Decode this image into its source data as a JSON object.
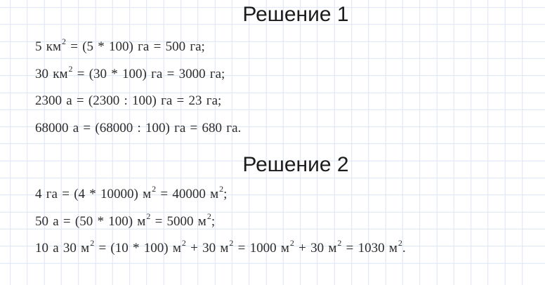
{
  "page": {
    "background_style": "grid-paper",
    "grid_color": "#dce5f3",
    "text_color": "#2c2c2c",
    "heading_color": "#1c1c1c"
  },
  "sections": [
    {
      "title": "Решение 1",
      "lines": [
        {
          "segments": [
            {
              "text": "5 км"
            },
            {
              "text": "2",
              "sup": true
            },
            {
              "text": " = (5 * 100) га = 500 га;"
            }
          ]
        },
        {
          "segments": [
            {
              "text": "30 км"
            },
            {
              "text": "2",
              "sup": true
            },
            {
              "text": " = (30 * 100) га = 3000 га;"
            }
          ]
        },
        {
          "segments": [
            {
              "text": "2300 а = (2300 : 100) га = 23 га;"
            }
          ]
        },
        {
          "segments": [
            {
              "text": "68000 а = (68000 : 100) га = 680 га."
            }
          ]
        }
      ]
    },
    {
      "title": "Решение 2",
      "lines": [
        {
          "segments": [
            {
              "text": "4 га = (4 * 10000) м"
            },
            {
              "text": "2",
              "sup": true
            },
            {
              "text": " = 40000 м"
            },
            {
              "text": "2",
              "sup": true
            },
            {
              "text": ";"
            }
          ]
        },
        {
          "segments": [
            {
              "text": "50 а = (50 * 100) м"
            },
            {
              "text": "2",
              "sup": true
            },
            {
              "text": " = 5000 м"
            },
            {
              "text": "2",
              "sup": true
            },
            {
              "text": ";"
            }
          ]
        },
        {
          "segments": [
            {
              "text": "10 а 30 м"
            },
            {
              "text": "2",
              "sup": true
            },
            {
              "text": " = (10 * 100) м"
            },
            {
              "text": "2",
              "sup": true
            },
            {
              "text": " + 30 м"
            },
            {
              "text": "2",
              "sup": true
            },
            {
              "text": " = 1000 м"
            },
            {
              "text": "2",
              "sup": true
            },
            {
              "text": " + 30 м"
            },
            {
              "text": "2",
              "sup": true
            },
            {
              "text": " = 1030 м"
            },
            {
              "text": "2",
              "sup": true
            },
            {
              "text": "."
            }
          ]
        }
      ]
    }
  ]
}
